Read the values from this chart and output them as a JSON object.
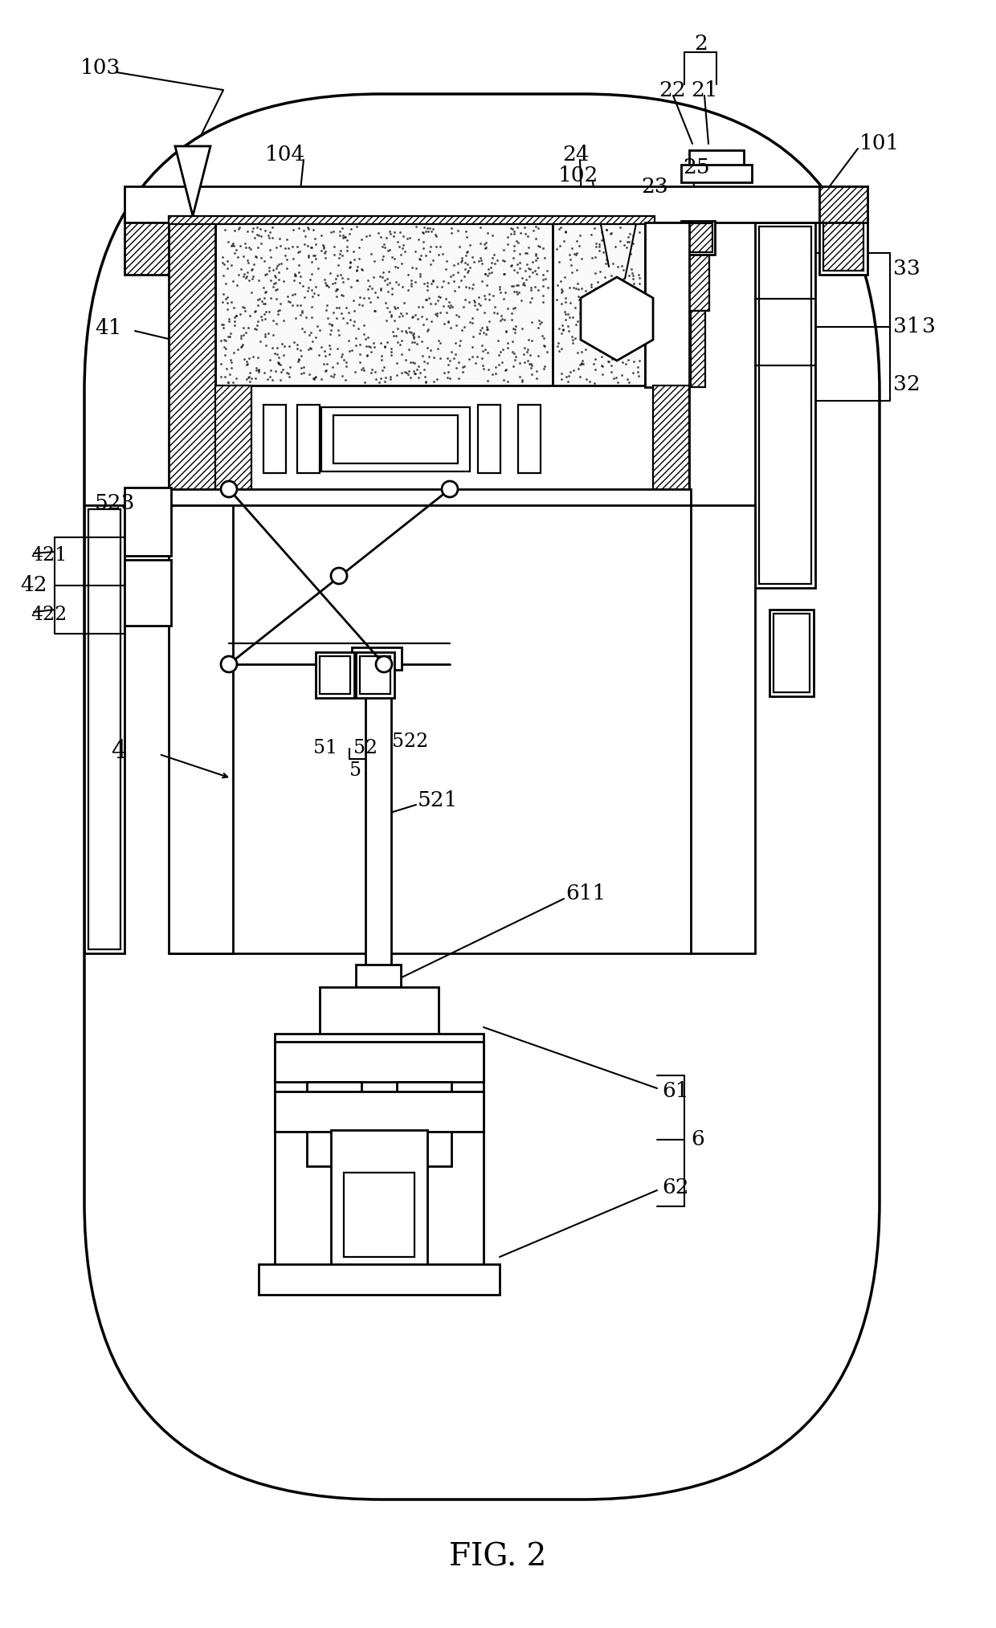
{
  "figsize": [
    12.4,
    20.27
  ],
  "dpi": 100,
  "bg_color": "#ffffff",
  "title": "FIG. 2"
}
